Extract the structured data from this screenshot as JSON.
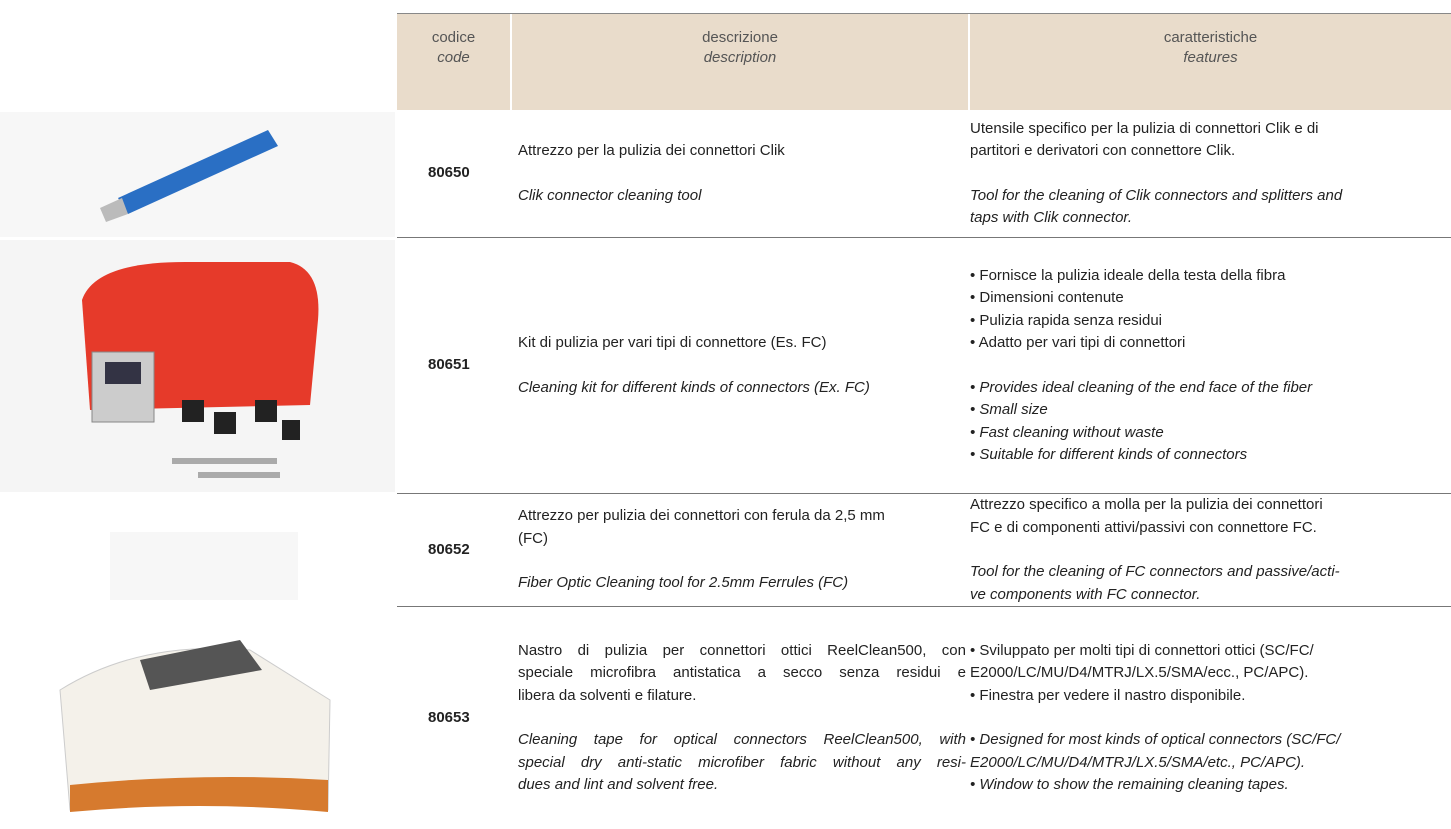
{
  "table": {
    "header": [
      {
        "it": "codice",
        "en": "code"
      },
      {
        "it": "descrizione",
        "en": "description"
      },
      {
        "it": "caratteristiche",
        "en": "features"
      }
    ],
    "rows": [
      {
        "code": "80650",
        "description": {
          "it": [
            "Attrezzo per la pulizia dei connettori Clik"
          ],
          "en": [
            "Clik connector cleaning tool"
          ]
        },
        "features": {
          "it": [
            "Utensile specifico per la pulizia di connettori Clik e di",
            "partitori e derivatori con connettore Clik."
          ],
          "en": [
            "Tool for the cleaning of Clik connectors and splitters and",
            "taps with Clik connector."
          ]
        }
      },
      {
        "code": "80651",
        "description": {
          "it": [
            "Kit di pulizia per vari tipi di connettore (Es. FC)"
          ],
          "en": [
            "Cleaning kit for different kinds of connectors (Ex. FC)"
          ]
        },
        "features": {
          "it": [
            "• Fornisce la pulizia ideale della testa della fibra",
            "• Dimensioni contenute",
            "• Pulizia rapida senza residui",
            "• Adatto per vari tipi di connettori"
          ],
          "en": [
            "• Provides ideal cleaning of the end face of the fiber",
            "• Small size",
            "• Fast cleaning without waste",
            "• Suitable for different kinds of connectors"
          ]
        }
      },
      {
        "code": "80652",
        "description": {
          "it": [
            "Attrezzo per pulizia dei connettori con ferula da 2,5 mm",
            "(FC)"
          ],
          "en": [
            "Fiber Optic Cleaning tool for 2.5mm Ferrules  (FC)"
          ]
        },
        "features": {
          "it": [
            "Attrezzo specifico a molla per la pulizia dei connettori",
            "FC e di componenti attivi/passivi con connettore FC."
          ],
          "en": [
            "Tool for the cleaning of FC connectors and passive/acti-",
            "ve components with FC connector."
          ]
        }
      },
      {
        "code": "80653",
        "description": {
          "it": [
            "Nastro di pulizia per connettori ottici ReelClean500, con",
            "speciale microfibra antistatica a secco senza residui e",
            "libera da solventi e filature."
          ],
          "en": [
            "Cleaning tape for optical connectors ReelClean500, with",
            "special dry anti-static microfiber fabric without any resi-",
            "dues and lint and solvent free."
          ]
        },
        "features": {
          "it": [
            "• Sviluppato per molti tipi di connettori ottici (SC/FC/",
            "E2000/LC/MU/D4/MTRJ/LX.5/SMA/ecc., PC/APC).",
            "• Finestra per vedere il nastro disponibile."
          ],
          "en": [
            "• Designed for most kinds of optical connectors (SC/FC/",
            "E2000/LC/MU/D4/MTRJ/LX.5/SMA/etc., PC/APC).",
            "• Window to show the remaining cleaning tapes."
          ]
        }
      }
    ]
  }
}
